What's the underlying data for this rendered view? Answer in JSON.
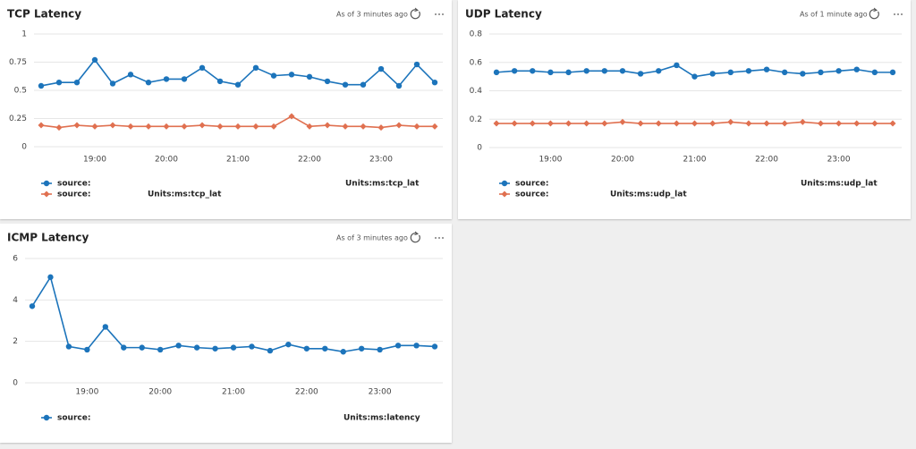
{
  "chart_data": [
    {
      "type": "line",
      "title": "TCP Latency",
      "status": "As of 3 minutes ago",
      "x": [
        18.25,
        18.5,
        18.75,
        19,
        19.25,
        19.5,
        19.75,
        20,
        20.25,
        20.5,
        20.75,
        21,
        21.25,
        21.5,
        21.75,
        22,
        22.25,
        22.5,
        22.75,
        23,
        23.25,
        23.5,
        23.75
      ],
      "xlim": [
        18.25,
        23.75
      ],
      "xticks": [
        {
          "value": 19,
          "label": "19:00"
        },
        {
          "value": 20,
          "label": "20:00"
        },
        {
          "value": 21,
          "label": "21:00"
        },
        {
          "value": 22,
          "label": "22:00"
        },
        {
          "value": 23,
          "label": "23:00"
        }
      ],
      "ylim": [
        0,
        1
      ],
      "yticks": [
        0,
        0.25,
        0.5,
        0.75,
        1
      ],
      "grid": true,
      "series": [
        {
          "name": "source:",
          "units": "Units:ms:tcp_lat",
          "color": "#1c74bb",
          "marker": "circle",
          "values": [
            0.54,
            0.57,
            0.57,
            0.77,
            0.56,
            0.64,
            0.57,
            0.6,
            0.6,
            0.7,
            0.58,
            0.55,
            0.7,
            0.63,
            0.64,
            0.62,
            0.58,
            0.55,
            0.55,
            0.69,
            0.54,
            0.73,
            0.57
          ]
        },
        {
          "name": "source:",
          "units": "Units:ms:tcp_lat",
          "color": "#e07050",
          "marker": "diamond",
          "values": [
            0.19,
            0.17,
            0.19,
            0.18,
            0.19,
            0.18,
            0.18,
            0.18,
            0.18,
            0.19,
            0.18,
            0.18,
            0.18,
            0.18,
            0.27,
            0.18,
            0.19,
            0.18,
            0.18,
            0.17,
            0.19,
            0.18,
            0.18
          ]
        }
      ]
    },
    {
      "type": "line",
      "title": "UDP Latency",
      "status": "As of 1 minute ago",
      "x": [
        18.25,
        18.5,
        18.75,
        19,
        19.25,
        19.5,
        19.75,
        20,
        20.25,
        20.5,
        20.75,
        21,
        21.25,
        21.5,
        21.75,
        22,
        22.25,
        22.5,
        22.75,
        23,
        23.25,
        23.5,
        23.75
      ],
      "xlim": [
        18.25,
        23.75
      ],
      "xticks": [
        {
          "value": 19,
          "label": "19:00"
        },
        {
          "value": 20,
          "label": "20:00"
        },
        {
          "value": 21,
          "label": "21:00"
        },
        {
          "value": 22,
          "label": "22:00"
        },
        {
          "value": 23,
          "label": "23:00"
        }
      ],
      "ylim": [
        0,
        0.8
      ],
      "yticks": [
        0,
        0.2,
        0.4,
        0.6,
        0.8
      ],
      "grid": true,
      "series": [
        {
          "name": "source:",
          "units": "Units:ms:udp_lat",
          "color": "#1c74bb",
          "marker": "circle",
          "values": [
            0.53,
            0.54,
            0.54,
            0.53,
            0.53,
            0.54,
            0.54,
            0.54,
            0.52,
            0.54,
            0.58,
            0.5,
            0.52,
            0.53,
            0.54,
            0.55,
            0.53,
            0.52,
            0.53,
            0.54,
            0.55,
            0.53,
            0.53
          ]
        },
        {
          "name": "source:",
          "units": "Units:ms:udp_lat",
          "color": "#e07050",
          "marker": "diamond",
          "values": [
            0.17,
            0.17,
            0.17,
            0.17,
            0.17,
            0.17,
            0.17,
            0.18,
            0.17,
            0.17,
            0.17,
            0.17,
            0.17,
            0.18,
            0.17,
            0.17,
            0.17,
            0.18,
            0.17,
            0.17,
            0.17,
            0.17,
            0.17
          ]
        }
      ]
    },
    {
      "type": "line",
      "title": "ICMP Latency",
      "status": "As of 3 minutes ago",
      "x": [
        18.25,
        18.5,
        18.75,
        19,
        19.25,
        19.5,
        19.75,
        20,
        20.25,
        20.5,
        20.75,
        21,
        21.25,
        21.5,
        21.75,
        22,
        22.25,
        22.5,
        22.75,
        23,
        23.25,
        23.5,
        23.75
      ],
      "xlim": [
        18.25,
        23.75
      ],
      "xticks": [
        {
          "value": 19,
          "label": "19:00"
        },
        {
          "value": 20,
          "label": "20:00"
        },
        {
          "value": 21,
          "label": "21:00"
        },
        {
          "value": 22,
          "label": "22:00"
        },
        {
          "value": 23,
          "label": "23:00"
        }
      ],
      "ylim": [
        0,
        6
      ],
      "yticks": [
        0,
        2,
        4,
        6
      ],
      "grid": true,
      "series": [
        {
          "name": "source:",
          "units": "Units:ms:latency",
          "color": "#1c74bb",
          "marker": "circle",
          "values": [
            3.7,
            5.1,
            1.75,
            1.6,
            2.7,
            1.7,
            1.7,
            1.6,
            1.8,
            1.7,
            1.65,
            1.7,
            1.75,
            1.55,
            1.85,
            1.65,
            1.65,
            1.5,
            1.65,
            1.6,
            1.8,
            1.8,
            1.75
          ]
        }
      ]
    }
  ]
}
